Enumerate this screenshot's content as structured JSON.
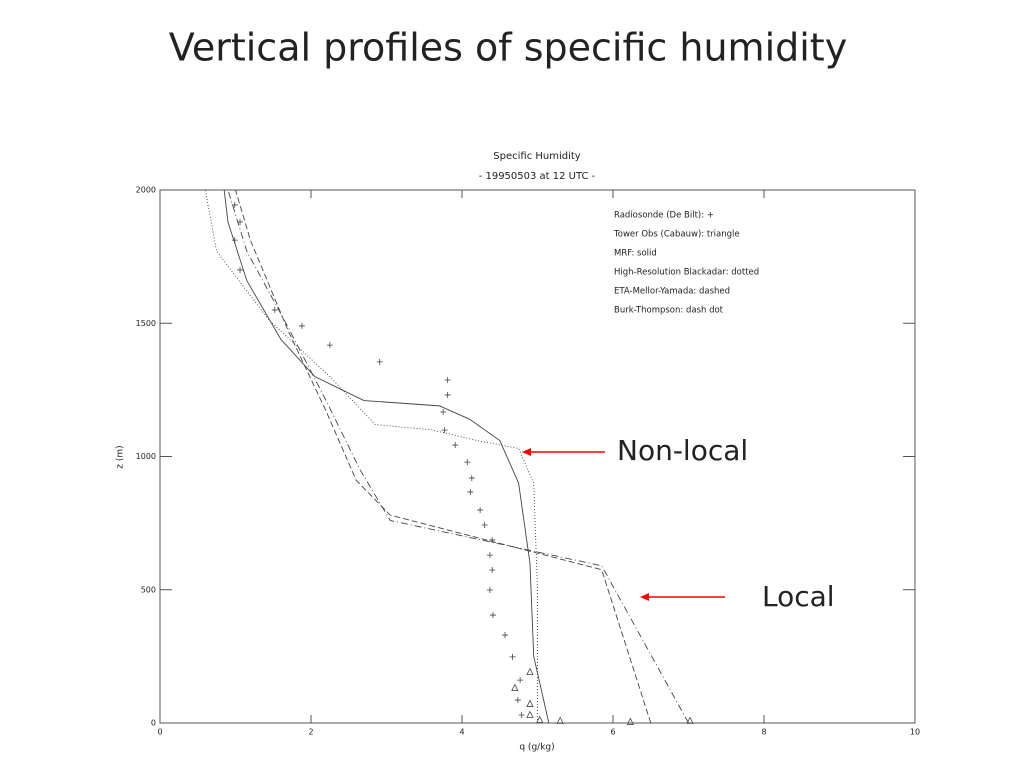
{
  "page_title": "Vertical profiles of specific humidity",
  "chart_data": {
    "type": "line",
    "title": "Specific Humidity",
    "subtitle": "- 19950503 at 12 UTC -",
    "x_label": "q (g/kg)",
    "y_label": "z (m)",
    "xlim": [
      0,
      10
    ],
    "xticks": [
      0,
      2,
      4,
      6,
      8,
      10
    ],
    "ylim": [
      0,
      2000
    ],
    "yticks": [
      0,
      500,
      1000,
      1500,
      2000
    ],
    "color": "#444444",
    "series": [
      {
        "name": "Radiosonde (De Bilt): +",
        "marker": "plus",
        "x": [
          0.99,
          1.06,
          0.99,
          1.06,
          1.52,
          1.88,
          2.25,
          2.91,
          3.81,
          3.81,
          3.75,
          3.77,
          3.91,
          4.07,
          4.13,
          4.11,
          4.24,
          4.3,
          4.4,
          4.37,
          4.4,
          4.37,
          4.41,
          4.57,
          4.67,
          4.77,
          4.74,
          4.79
        ],
        "y": [
          1944,
          1880,
          1812,
          1700,
          1550,
          1490,
          1418,
          1355,
          1287,
          1231,
          1167,
          1099,
          1043,
          979,
          919,
          867,
          799,
          743,
          687,
          630,
          574,
          499,
          405,
          330,
          248,
          161,
          86,
          30
        ]
      },
      {
        "name": "Tower Obs (Cabauw): triangle",
        "marker": "triangle",
        "x": [
          4.9,
          4.7,
          4.9,
          4.9,
          5.03,
          5.3,
          6.23,
          7.02
        ],
        "y": [
          191,
          131,
          71,
          30,
          11,
          8,
          4,
          8
        ]
      },
      {
        "name": "MRF: solid",
        "style": "solid",
        "x": [
          5.15,
          4.95,
          4.9,
          4.75,
          4.5,
          4.1,
          3.7,
          2.7,
          2.05,
          1.6,
          1.15,
          0.9,
          0.85
        ],
        "y": [
          0,
          250,
          600,
          900,
          1060,
          1140,
          1190,
          1210,
          1300,
          1440,
          1660,
          1880,
          2000
        ]
      },
      {
        "name": "High-Resolution Blackadar: dotted",
        "style": "dotted",
        "x": [
          5.0,
          5.0,
          4.95,
          4.75,
          4.2,
          3.6,
          2.85,
          2.25,
          1.45,
          0.75,
          0.6
        ],
        "y": [
          0,
          500,
          900,
          1030,
          1060,
          1100,
          1120,
          1300,
          1510,
          1770,
          2000
        ]
      },
      {
        "name": "ETA-Mellor-Yamada: dashed",
        "style": "dashed",
        "x": [
          6.5,
          5.85,
          3.05,
          2.6,
          2.2,
          1.7,
          1.2,
          1.0
        ],
        "y": [
          0,
          575,
          780,
          910,
          1170,
          1470,
          1810,
          2000
        ]
      },
      {
        "name": "Burk-Thompson: dash dot",
        "style": "dashdot",
        "x": [
          7.0,
          5.85,
          3.05,
          2.65,
          2.2,
          1.65,
          1.15,
          0.9
        ],
        "y": [
          0,
          590,
          760,
          950,
          1210,
          1510,
          1770,
          2000
        ]
      }
    ],
    "annotations": [
      "Non-local",
      "Local"
    ],
    "annotation_color": "#ff0000"
  }
}
